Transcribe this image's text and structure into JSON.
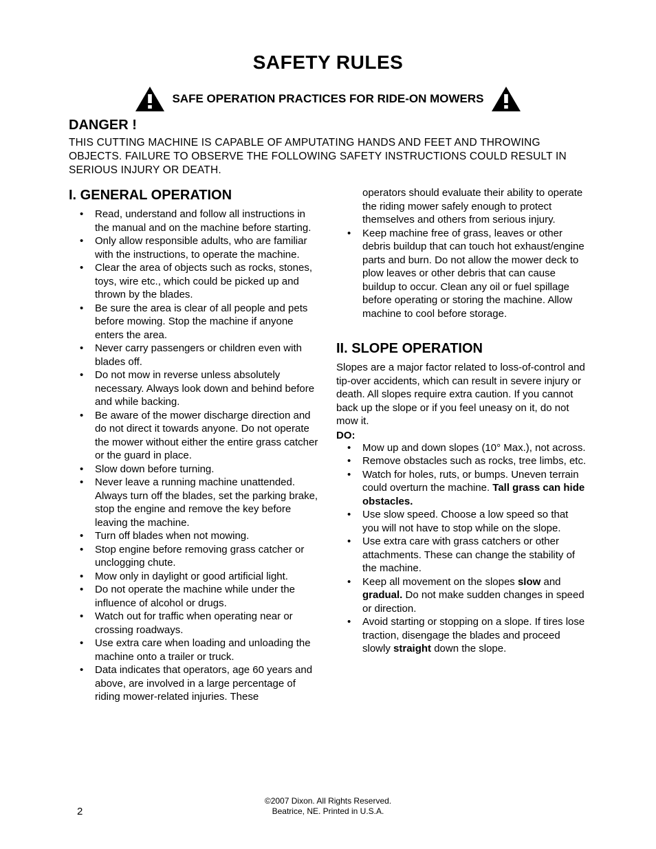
{
  "title": "SAFETY RULES",
  "subtitle": "SAFE OPERATION PRACTICES FOR RIDE-ON MOWERS",
  "danger": {
    "heading": "DANGER !",
    "body": "THIS CUTTING MACHINE IS CAPABLE OF AMPUTATING HANDS AND FEET AND THROWING OBJECTS. FAILURE TO OBSERVE THE FOLLOWING SAFETY INSTRUCTIONS COULD RESULT IN SERIOUS INJURY OR DEATH."
  },
  "section1": {
    "heading": "I.  GENERAL  OPERATION",
    "items": [
      "Read, understand and follow all instructions in the manual and on the machine before starting.",
      "Only allow responsible adults, who are familiar with the instructions, to operate the machine.",
      "Clear the area of objects such as rocks, stones, toys, wire etc., which could be picked up and thrown by the blades.",
      "Be sure the area is clear of all people and pets before mowing. Stop the machine if anyone enters the area.",
      "Never carry passengers or children even with blades off.",
      "Do not  mow in reverse unless absolutely necessary. Always look down and behind before and while backing.",
      "Be aware of the mower discharge direction and do not direct it towards anyone. Do not operate the mower without either the entire grass catcher or the guard in place.",
      "Slow down before turning.",
      "Never leave a running machine unattended. Always turn off the blades, set the parking brake, stop the engine and remove  the key before leaving the machine.",
      "Turn off blades when not mowing.",
      "Stop engine before removing grass catcher or unclogging chute.",
      "Mow only in daylight or good artificial light.",
      "Do not operate the machine while under the influence of alcohol or drugs.",
      "Watch out for traffic when operating near or crossing  roadways.",
      "Use extra care when loading and unloading the machine onto a trailer or truck.",
      "Data indicates that operators, age 60 years and above, are involved in a large percentage of riding mower-related injuries. These"
    ]
  },
  "section1_cont": {
    "orphan": "operators should evaluate their ability to operate the riding mower safely enough to protect themselves and others from serious injury.",
    "items": [
      "Keep machine free of grass, leaves or other debris buildup that can touch hot exhaust/engine parts and burn. Do not allow the mower deck to plow leaves or other debris that can cause buildup to occur. Clean any oil or fuel spillage before operating or storing the machine. Allow machine to cool before storage."
    ]
  },
  "section2": {
    "heading": "II.  SLOPE  OPERATION",
    "intro": "Slopes are a major factor related to loss-of-control and tip-over accidents, which can result in severe injury or death. All slopes require extra caution. If you cannot back up the slope or if you feel uneasy on it, do not mow it.",
    "do_label": "DO:",
    "do_items": [
      "Mow up and down slopes (10° Max.), not across.",
      "Remove obstacles such as rocks, tree limbs,  etc.",
      "Watch for holes, ruts, or bumps. Uneven terrain could overturn the machine. <b>Tall grass can hide obstacles.</b>",
      "Use slow speed. Choose a low speed so that you will not have to stop while on the slope.",
      "Use extra care with grass catchers or other attachments. These can change the stability of the machine.",
      "Keep all movement on the slopes <b>slow</b> and <b>gradual.</b> Do not make sudden changes in speed or direction.",
      "Avoid starting or stopping on a slope. If tires lose traction, disengage the blades and proceed slowly <b>straight</b> down the slope."
    ]
  },
  "footer": {
    "line1": "©2007 Dixon.  All Rights Reserved.",
    "line2": "Beatrice, NE. Printed in U.S.A."
  },
  "page_number": "2",
  "icon": {
    "fill": "#000000",
    "bang": "#ffffff"
  }
}
